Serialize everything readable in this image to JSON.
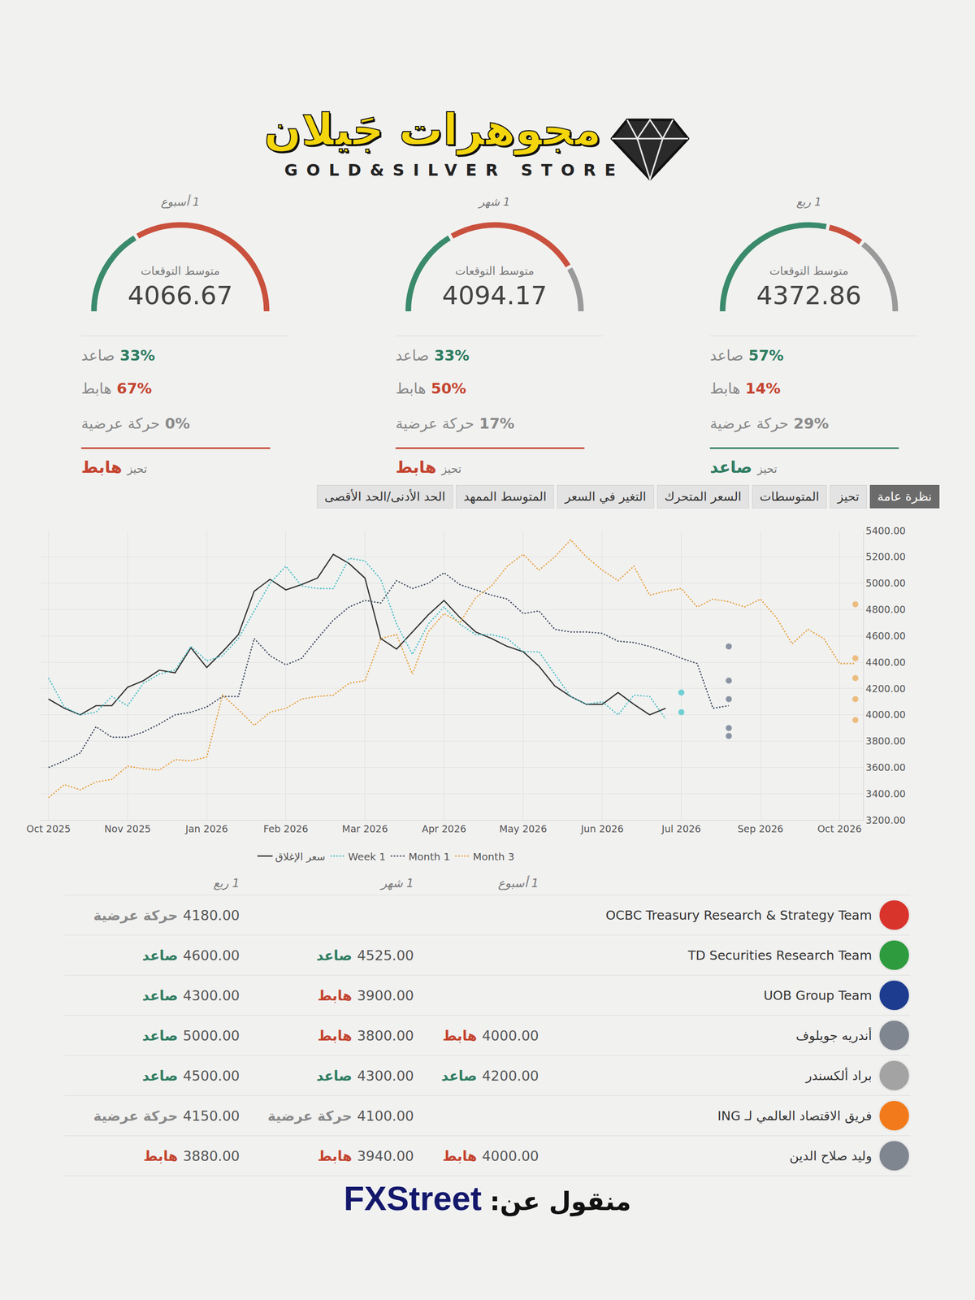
{
  "header": {
    "brand": "مجوهرات جَيلان",
    "tagline": "GOLD&SILVER STORE"
  },
  "gauges": [
    {
      "period": "1 ربع",
      "caption": "متوسط التوقعات",
      "average": 4372.86,
      "stats": [
        {
          "label": "صاعد",
          "value": 57,
          "text": "57%",
          "color": "#2f7d62"
        },
        {
          "label": "هابط",
          "value": 14,
          "text": "14%",
          "color": "#c4442f"
        },
        {
          "label": "حركة عرضية",
          "value": 29,
          "text": "29%",
          "color": "#8a8a8a"
        }
      ],
      "bias": {
        "label": "تحيز",
        "value": "صاعد",
        "color": "#2f7d62"
      }
    },
    {
      "period": "1 شهر",
      "caption": "متوسط التوقعات",
      "average": 4094.17,
      "stats": [
        {
          "label": "صاعد",
          "value": 33,
          "text": "33%",
          "color": "#2f7d62"
        },
        {
          "label": "هابط",
          "value": 50,
          "text": "50%",
          "color": "#c4442f"
        },
        {
          "label": "حركة عرضية",
          "value": 17,
          "text": "17%",
          "color": "#8a8a8a"
        }
      ],
      "bias": {
        "label": "تحيز",
        "value": "هابط",
        "color": "#c4442f"
      }
    },
    {
      "period": "1 أسبوع",
      "caption": "متوسط التوقعات",
      "average": 4066.67,
      "stats": [
        {
          "label": "صاعد",
          "value": 33,
          "text": "33%",
          "color": "#2f7d62"
        },
        {
          "label": "هابط",
          "value": 67,
          "text": "67%",
          "color": "#c4442f"
        },
        {
          "label": "حركة عرضية",
          "value": 0,
          "text": "0%",
          "color": "#8a8a8a"
        }
      ],
      "bias": {
        "label": "تحيز",
        "value": "هابط",
        "color": "#c4442f"
      }
    }
  ],
  "tabs": {
    "items": [
      "نظرة عامة",
      "تحيز",
      "المتوسطات",
      "السعر المتحرك",
      "التغير في السعر",
      "المتوسط الممهد",
      "الحد الأدنى/الحد الأقصى"
    ],
    "active": "نظرة عامة"
  },
  "chart_data": {
    "type": "line",
    "categories": [
      "Oct 2025",
      null,
      null,
      null,
      null,
      "Nov 2025",
      null,
      null,
      null,
      null,
      "Jan 2026",
      null,
      null,
      null,
      null,
      "Feb 2026",
      null,
      null,
      null,
      null,
      "Mar 2026",
      null,
      null,
      null,
      null,
      "Apr 2026",
      null,
      null,
      null,
      null,
      "May 2026",
      null,
      null,
      null,
      null,
      "Jun 2026",
      null,
      null,
      null,
      null,
      "Jul 2026",
      null,
      null,
      null,
      null,
      "Sep 2026",
      null,
      null,
      null,
      null,
      "Oct 2026",
      null
    ],
    "series": [
      {
        "name": "سعر الإغلاق",
        "type": "line",
        "color": "#333333",
        "line_style": "solid",
        "values": [
          4120,
          4050,
          4000,
          4070,
          4070,
          4210,
          4260,
          4340,
          4320,
          4510,
          4360,
          4480,
          4610,
          4940,
          5030,
          4950,
          4990,
          5040,
          5220,
          5150,
          5040,
          4580,
          4500,
          4630,
          4760,
          4870,
          4740,
          4630,
          4580,
          4520,
          4480,
          4370,
          4220,
          4140,
          4080,
          4080,
          4170,
          4080,
          4000,
          4050,
          null,
          null,
          null,
          null,
          null,
          null,
          null,
          null,
          null,
          null,
          null,
          null
        ]
      },
      {
        "name": "Week 1",
        "type": "line",
        "color": "#4bbfc4",
        "line_style": "dotted",
        "values": [
          4280,
          4060,
          4000,
          4020,
          4140,
          4070,
          4240,
          4310,
          4340,
          4520,
          4410,
          4450,
          4580,
          4790,
          5000,
          5130,
          4980,
          4960,
          4960,
          5190,
          5170,
          5030,
          4690,
          4460,
          4690,
          4820,
          4690,
          4610,
          4610,
          4580,
          4480,
          4480,
          4310,
          4140,
          4080,
          4100,
          4000,
          4150,
          4140,
          3970,
          null,
          null,
          null,
          null,
          null,
          null,
          null,
          null,
          null,
          null,
          null,
          null
        ]
      },
      {
        "name": "Month 1",
        "type": "line",
        "color": "#3e4a5e",
        "line_style": "dotted",
        "values": [
          3600,
          3650,
          3710,
          3910,
          3830,
          3830,
          3870,
          3930,
          4000,
          4020,
          4060,
          4140,
          4140,
          4580,
          4450,
          4380,
          4430,
          4580,
          4720,
          4820,
          4870,
          4850,
          5020,
          4960,
          5000,
          5080,
          4990,
          4950,
          4910,
          4880,
          4770,
          4790,
          4650,
          4630,
          4630,
          4620,
          4560,
          4550,
          4520,
          4480,
          4430,
          4390,
          4050,
          4070,
          null,
          null,
          null,
          null,
          null,
          null,
          null,
          null
        ]
      },
      {
        "name": "Month 3",
        "type": "line",
        "color": "#e8a13c",
        "line_style": "dotted",
        "values": [
          3370,
          3470,
          3430,
          3490,
          3510,
          3610,
          3590,
          3580,
          3660,
          3650,
          3680,
          4150,
          4040,
          3920,
          4020,
          4050,
          4120,
          4140,
          4150,
          4240,
          4260,
          4580,
          4610,
          4310,
          4630,
          4770,
          4700,
          4890,
          4980,
          5130,
          5220,
          5100,
          5200,
          5330,
          5200,
          5100,
          5020,
          5130,
          4910,
          4940,
          4960,
          4820,
          4880,
          4860,
          4820,
          4880,
          4740,
          4540,
          4650,
          4580,
          4390,
          4390
        ]
      },
      {
        "type": "scatter",
        "color": "#6fcfd3",
        "marker": "circle",
        "x": [
          40,
          40
        ],
        "values": [
          4170,
          4020
        ]
      },
      {
        "type": "scatter",
        "color": "#8a93a2",
        "marker": "circle",
        "x": [
          43,
          43,
          43,
          43,
          43
        ],
        "values": [
          4520,
          4260,
          4120,
          3900,
          3840
        ]
      },
      {
        "type": "scatter",
        "color": "#ecbd80",
        "marker": "circle",
        "x": [
          51,
          51,
          51,
          51,
          51
        ],
        "values": [
          4840,
          4430,
          4280,
          4120,
          3960
        ]
      }
    ],
    "ylim": [
      3200,
      5400
    ],
    "yticks": [
      {
        "value": 3200,
        "label": "3200.00"
      },
      {
        "value": 3400,
        "label": "3400.00"
      },
      {
        "value": 3600,
        "label": "3600.00"
      },
      {
        "value": 3800,
        "label": "3800.00"
      },
      {
        "value": 4000,
        "label": "4000.00"
      },
      {
        "value": 4200,
        "label": "4200.00"
      },
      {
        "value": 4400,
        "label": "4400.00"
      },
      {
        "value": 4600,
        "label": "4600.00"
      },
      {
        "value": 4800,
        "label": "4800.00"
      },
      {
        "value": 5000,
        "label": "5000.00"
      },
      {
        "value": 5200,
        "label": "5200.00"
      },
      {
        "value": 5400,
        "label": "5400.00"
      }
    ],
    "grid": true,
    "legend": "bottom"
  },
  "table": {
    "columns": [
      "1 أسبوع",
      "1 شهر",
      "1 ربع"
    ],
    "rows": [
      {
        "name": "OCBC Treasury Research & Strategy Team",
        "cells": [
          null,
          null,
          {
            "value": "4180.00",
            "label": "حركة عرضية",
            "color": "#8a8a8a"
          }
        ]
      },
      {
        "name": "TD Securities Research Team",
        "cells": [
          null,
          {
            "value": "4525.00",
            "label": "صاعد",
            "color": "#2f7d62"
          },
          {
            "value": "4600.00",
            "label": "صاعد",
            "color": "#2f7d62"
          }
        ]
      },
      {
        "name": "UOB Group Team",
        "cells": [
          null,
          {
            "value": "3900.00",
            "label": "هابط",
            "color": "#c4442f"
          },
          {
            "value": "4300.00",
            "label": "صاعد",
            "color": "#2f7d62"
          }
        ]
      },
      {
        "name": "أندريه جويلوف",
        "cells": [
          {
            "value": "4000.00",
            "label": "هابط",
            "color": "#c4442f"
          },
          {
            "value": "3800.00",
            "label": "هابط",
            "color": "#c4442f"
          },
          {
            "value": "5000.00",
            "label": "صاعد",
            "color": "#2f7d62"
          }
        ]
      },
      {
        "name": "براد ألكسندر",
        "cells": [
          {
            "value": "4200.00",
            "label": "صاعد",
            "color": "#2f7d62"
          },
          {
            "value": "4300.00",
            "label": "صاعد",
            "color": "#2f7d62"
          },
          {
            "value": "4500.00",
            "label": "صاعد",
            "color": "#2f7d62"
          }
        ]
      },
      {
        "name": "فريق الاقتصاد العالمي لـ ING",
        "cells": [
          null,
          {
            "value": "4100.00",
            "label": "حركة عرضية",
            "color": "#8a8a8a"
          },
          {
            "value": "4150.00",
            "label": "حركة عرضية",
            "color": "#8a8a8a"
          }
        ]
      },
      {
        "name": "وليد صلاح الدين",
        "cells": [
          {
            "value": "4000.00",
            "label": "هابط",
            "color": "#c4442f"
          },
          {
            "value": "3940.00",
            "label": "هابط",
            "color": "#c4442f"
          },
          {
            "value": "3880.00",
            "label": "هابط",
            "color": "#c4442f"
          }
        ]
      }
    ]
  },
  "footer": {
    "prefix": "منقول عن:",
    "source": "FXStreet"
  }
}
